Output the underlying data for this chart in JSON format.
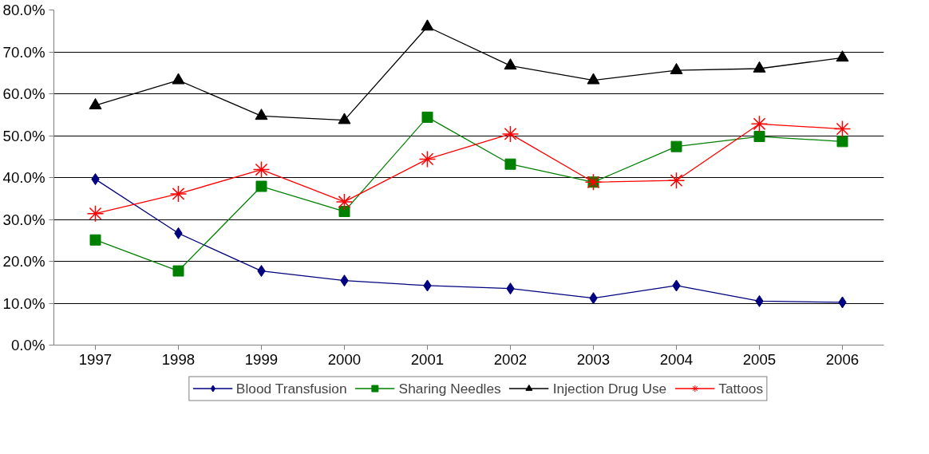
{
  "chart_data": {
    "type": "line",
    "categories": [
      "1997",
      "1998",
      "1999",
      "2000",
      "2001",
      "2002",
      "2003",
      "2004",
      "2005",
      "2006"
    ],
    "series": [
      {
        "name": "Blood Transfusion",
        "color": "#000080",
        "marker": "diamond",
        "values": [
          39.6,
          26.7,
          17.7,
          15.4,
          14.2,
          13.5,
          11.2,
          14.2,
          10.5,
          10.2
        ]
      },
      {
        "name": "Sharing Needles",
        "color": "#008000",
        "marker": "square",
        "values": [
          25.1,
          17.7,
          37.9,
          31.9,
          54.4,
          43.2,
          38.9,
          47.4,
          49.8,
          48.6
        ]
      },
      {
        "name": "Injection Drug Use",
        "color": "#000000",
        "marker": "triangle",
        "values": [
          57.2,
          63.2,
          54.7,
          53.7,
          76.0,
          66.7,
          63.2,
          65.6,
          66.0,
          68.6
        ]
      },
      {
        "name": "Tattoos",
        "color": "#ff0000",
        "marker": "cross",
        "values": [
          31.4,
          36.1,
          41.9,
          34.2,
          44.4,
          50.4,
          38.9,
          39.3,
          52.8,
          51.6
        ]
      }
    ],
    "ylim": [
      0,
      80
    ],
    "yticks": [
      {
        "value": 0,
        "label": "0.0%"
      },
      {
        "value": 10,
        "label": "10.0%"
      },
      {
        "value": 20,
        "label": "20.0%"
      },
      {
        "value": 30,
        "label": "30.0%"
      },
      {
        "value": 40,
        "label": "40.0%"
      },
      {
        "value": 50,
        "label": "50.0%"
      },
      {
        "value": 60,
        "label": "60.0%"
      },
      {
        "value": 70,
        "label": "70.0%"
      },
      {
        "value": 80,
        "label": "80.0%"
      }
    ],
    "grid": "y",
    "legend": "bottom",
    "line_style": "solid"
  }
}
